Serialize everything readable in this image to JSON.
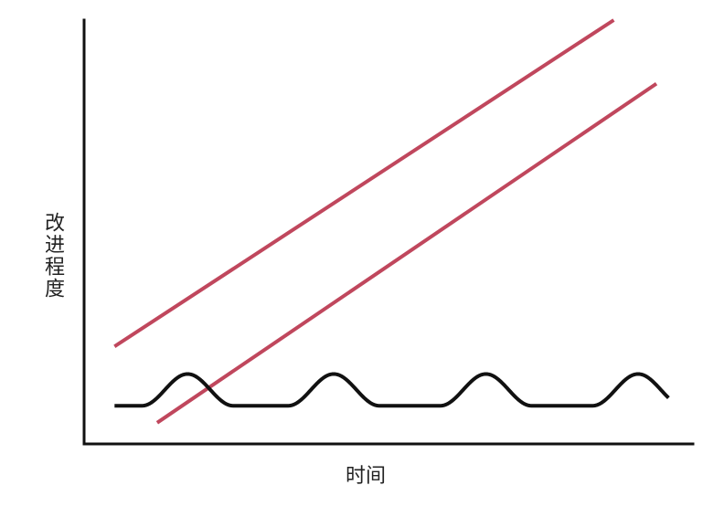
{
  "chart_data": {
    "type": "line",
    "title": "",
    "xlabel": "时间",
    "ylabel": "改进程度",
    "grid": false,
    "legend": "none",
    "axis_ticks": false,
    "colors": {
      "axes": "#111111",
      "red_lines": "#c0475d",
      "wave": "#111111"
    },
    "series": [
      {
        "kind": "straight-line",
        "color": "#c0475d",
        "points": [
          [
            0.05,
            0.23
          ],
          [
            0.87,
            1.0
          ]
        ]
      },
      {
        "kind": "straight-line",
        "color": "#c0475d",
        "points": [
          [
            0.12,
            0.05
          ],
          [
            0.94,
            0.85
          ]
        ]
      },
      {
        "kind": "wave",
        "color": "#111111",
        "baseline": 0.09,
        "amplitude": 0.075,
        "peaks_x": [
          0.17,
          0.41,
          0.66,
          0.91
        ],
        "x_range": [
          0.05,
          0.96
        ]
      }
    ],
    "xlim": [
      0,
      1
    ],
    "ylim": [
      0,
      1
    ]
  }
}
